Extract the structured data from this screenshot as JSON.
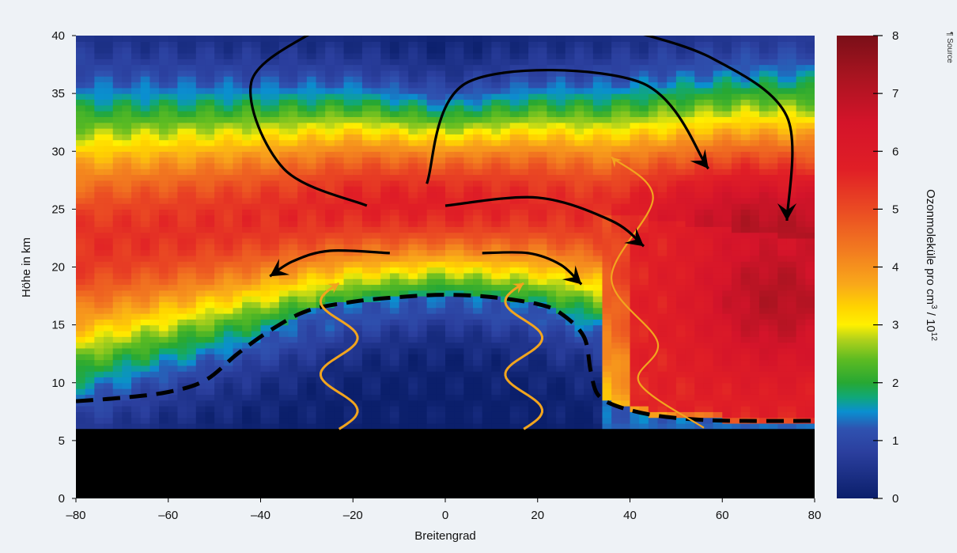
{
  "chart_data": {
    "type": "heatmap",
    "title": "",
    "xlabel": "Breitengrad",
    "ylabel": "Höhe in km",
    "colorbar_label_main": "Ozonmoleküle pro cm",
    "colorbar_label_sup1": "3",
    "colorbar_label_mid": " / 10",
    "colorbar_label_sup2": "12",
    "side_note": "¶ Source",
    "xlim": [
      -80,
      80
    ],
    "ylim": [
      0,
      40
    ],
    "zlim": [
      0,
      8
    ],
    "x_ticks": [
      {
        "value": -80,
        "label": "–80"
      },
      {
        "value": -60,
        "label": "–60"
      },
      {
        "value": -40,
        "label": "–40"
      },
      {
        "value": -20,
        "label": "–20"
      },
      {
        "value": 0,
        "label": "0"
      },
      {
        "value": 20,
        "label": "20"
      },
      {
        "value": 40,
        "label": "40"
      },
      {
        "value": 60,
        "label": "60"
      },
      {
        "value": 80,
        "label": "80"
      }
    ],
    "y_ticks": [
      {
        "value": 0,
        "label": "0"
      },
      {
        "value": 5,
        "label": "5"
      },
      {
        "value": 10,
        "label": "10"
      },
      {
        "value": 15,
        "label": "15"
      },
      {
        "value": 20,
        "label": "20"
      },
      {
        "value": 25,
        "label": "25"
      },
      {
        "value": 30,
        "label": "30"
      },
      {
        "value": 35,
        "label": "35"
      },
      {
        "value": 40,
        "label": "40"
      }
    ],
    "colorbar_ticks": [
      {
        "value": 0,
        "label": "0"
      },
      {
        "value": 1,
        "label": "1"
      },
      {
        "value": 2,
        "label": "2"
      },
      {
        "value": 3,
        "label": "3"
      },
      {
        "value": 4,
        "label": "4"
      },
      {
        "value": 5,
        "label": "5"
      },
      {
        "value": 6,
        "label": "6"
      },
      {
        "value": 7,
        "label": "7"
      },
      {
        "value": 8,
        "label": "8"
      }
    ],
    "colormap": [
      [
        0.0,
        "#0b1f6b"
      ],
      [
        0.8,
        "#2b3f9e"
      ],
      [
        1.2,
        "#2f52b0"
      ],
      [
        1.5,
        "#0a8fd0"
      ],
      [
        1.75,
        "#10a878"
      ],
      [
        2.0,
        "#27a833"
      ],
      [
        2.4,
        "#5dbb22"
      ],
      [
        2.75,
        "#b2d21b"
      ],
      [
        3.0,
        "#fff000"
      ],
      [
        3.3,
        "#ffd400"
      ],
      [
        3.7,
        "#f9a81a"
      ],
      [
        4.3,
        "#f27a20"
      ],
      [
        5.0,
        "#ea4a23"
      ],
      [
        5.7,
        "#e01e26"
      ],
      [
        6.5,
        "#d4142a"
      ],
      [
        7.3,
        "#a81420"
      ],
      [
        8.0,
        "#7a0f18"
      ]
    ],
    "ground_top_km": 6,
    "ground_color": "#000000",
    "tropopause": [
      [
        -80,
        8.4
      ],
      [
        -70,
        8.7
      ],
      [
        -60,
        9.2
      ],
      [
        -52,
        10.2
      ],
      [
        -45,
        12.5
      ],
      [
        -38,
        14.5
      ],
      [
        -30,
        16.2
      ],
      [
        -20,
        17.0
      ],
      [
        -10,
        17.4
      ],
      [
        0,
        17.6
      ],
      [
        10,
        17.4
      ],
      [
        20,
        16.8
      ],
      [
        25,
        16.0
      ],
      [
        30,
        14.0
      ],
      [
        31.5,
        11.0
      ],
      [
        33,
        9.0
      ],
      [
        37,
        8.0
      ],
      [
        45,
        7.2
      ],
      [
        55,
        6.8
      ],
      [
        65,
        6.7
      ],
      [
        80,
        6.7
      ]
    ],
    "circulation_arrows": [
      {
        "points": [
          [
            -28,
            40.5
          ],
          [
            -42,
            36
          ],
          [
            -35,
            28.5
          ],
          [
            -17,
            25.3
          ]
        ],
        "head": false
      },
      {
        "points": [
          [
            -4,
            27.2
          ],
          [
            5,
            36
          ],
          [
            42,
            36
          ],
          [
            57,
            28.5
          ]
        ],
        "head": true
      },
      {
        "points": [
          [
            39.5,
            40.5
          ],
          [
            58,
            38
          ],
          [
            74,
            33
          ],
          [
            74,
            24
          ]
        ],
        "head": true
      },
      {
        "points": [
          [
            0,
            25.3
          ],
          [
            20,
            26
          ],
          [
            36,
            24
          ],
          [
            43,
            21.8
          ]
        ],
        "head": true
      },
      {
        "points": [
          [
            -12,
            21.2
          ],
          [
            -25,
            21.4
          ],
          [
            -33,
            20.5
          ],
          [
            -38,
            19.2
          ]
        ],
        "head": true
      },
      {
        "points": [
          [
            8,
            21.2
          ],
          [
            18,
            21.2
          ],
          [
            25,
            20.2
          ],
          [
            29.5,
            18.5
          ]
        ],
        "head": true
      }
    ],
    "upwelling_waves": [
      {
        "x_center": -23,
        "y_start": 6.0,
        "y_end": 18.6,
        "amplitude": 4.0,
        "cycles": 2
      },
      {
        "x_center": 17,
        "y_start": 6.0,
        "y_end": 18.6,
        "amplitude": 4.0,
        "cycles": 2
      }
    ],
    "orange_branch": {
      "points": [
        [
          56,
          6.1
        ],
        [
          42,
          10
        ],
        [
          46,
          13.5
        ],
        [
          36,
          19
        ],
        [
          45,
          26
        ],
        [
          36,
          29.5
        ]
      ],
      "head": true
    },
    "ozone_field_points": [
      {
        "lat": -80,
        "alt": 20.5,
        "value": 4.2
      },
      {
        "lat": -60,
        "alt": 21.5,
        "value": 4.6
      },
      {
        "lat": -40,
        "alt": 24.0,
        "value": 5.0
      },
      {
        "lat": -20,
        "alt": 25.0,
        "value": 5.6
      },
      {
        "lat": -5,
        "alt": 25.5,
        "value": 5.8
      },
      {
        "lat": 10,
        "alt": 25.0,
        "value": 5.5
      },
      {
        "lat": 30,
        "alt": 24.0,
        "value": 5.4
      },
      {
        "lat": 45,
        "alt": 21.0,
        "value": 6.4
      },
      {
        "lat": 60,
        "alt": 19.0,
        "value": 6.7
      },
      {
        "lat": 72,
        "alt": 17.5,
        "value": 7.3
      },
      {
        "lat": 80,
        "alt": 18.0,
        "value": 7.0
      },
      {
        "lat": 60,
        "alt": 12.0,
        "value": 5.8
      },
      {
        "lat": 0,
        "alt": 12.0,
        "value": 0.6
      },
      {
        "lat": 0,
        "alt": 38.0,
        "value": 0.8
      }
    ]
  }
}
